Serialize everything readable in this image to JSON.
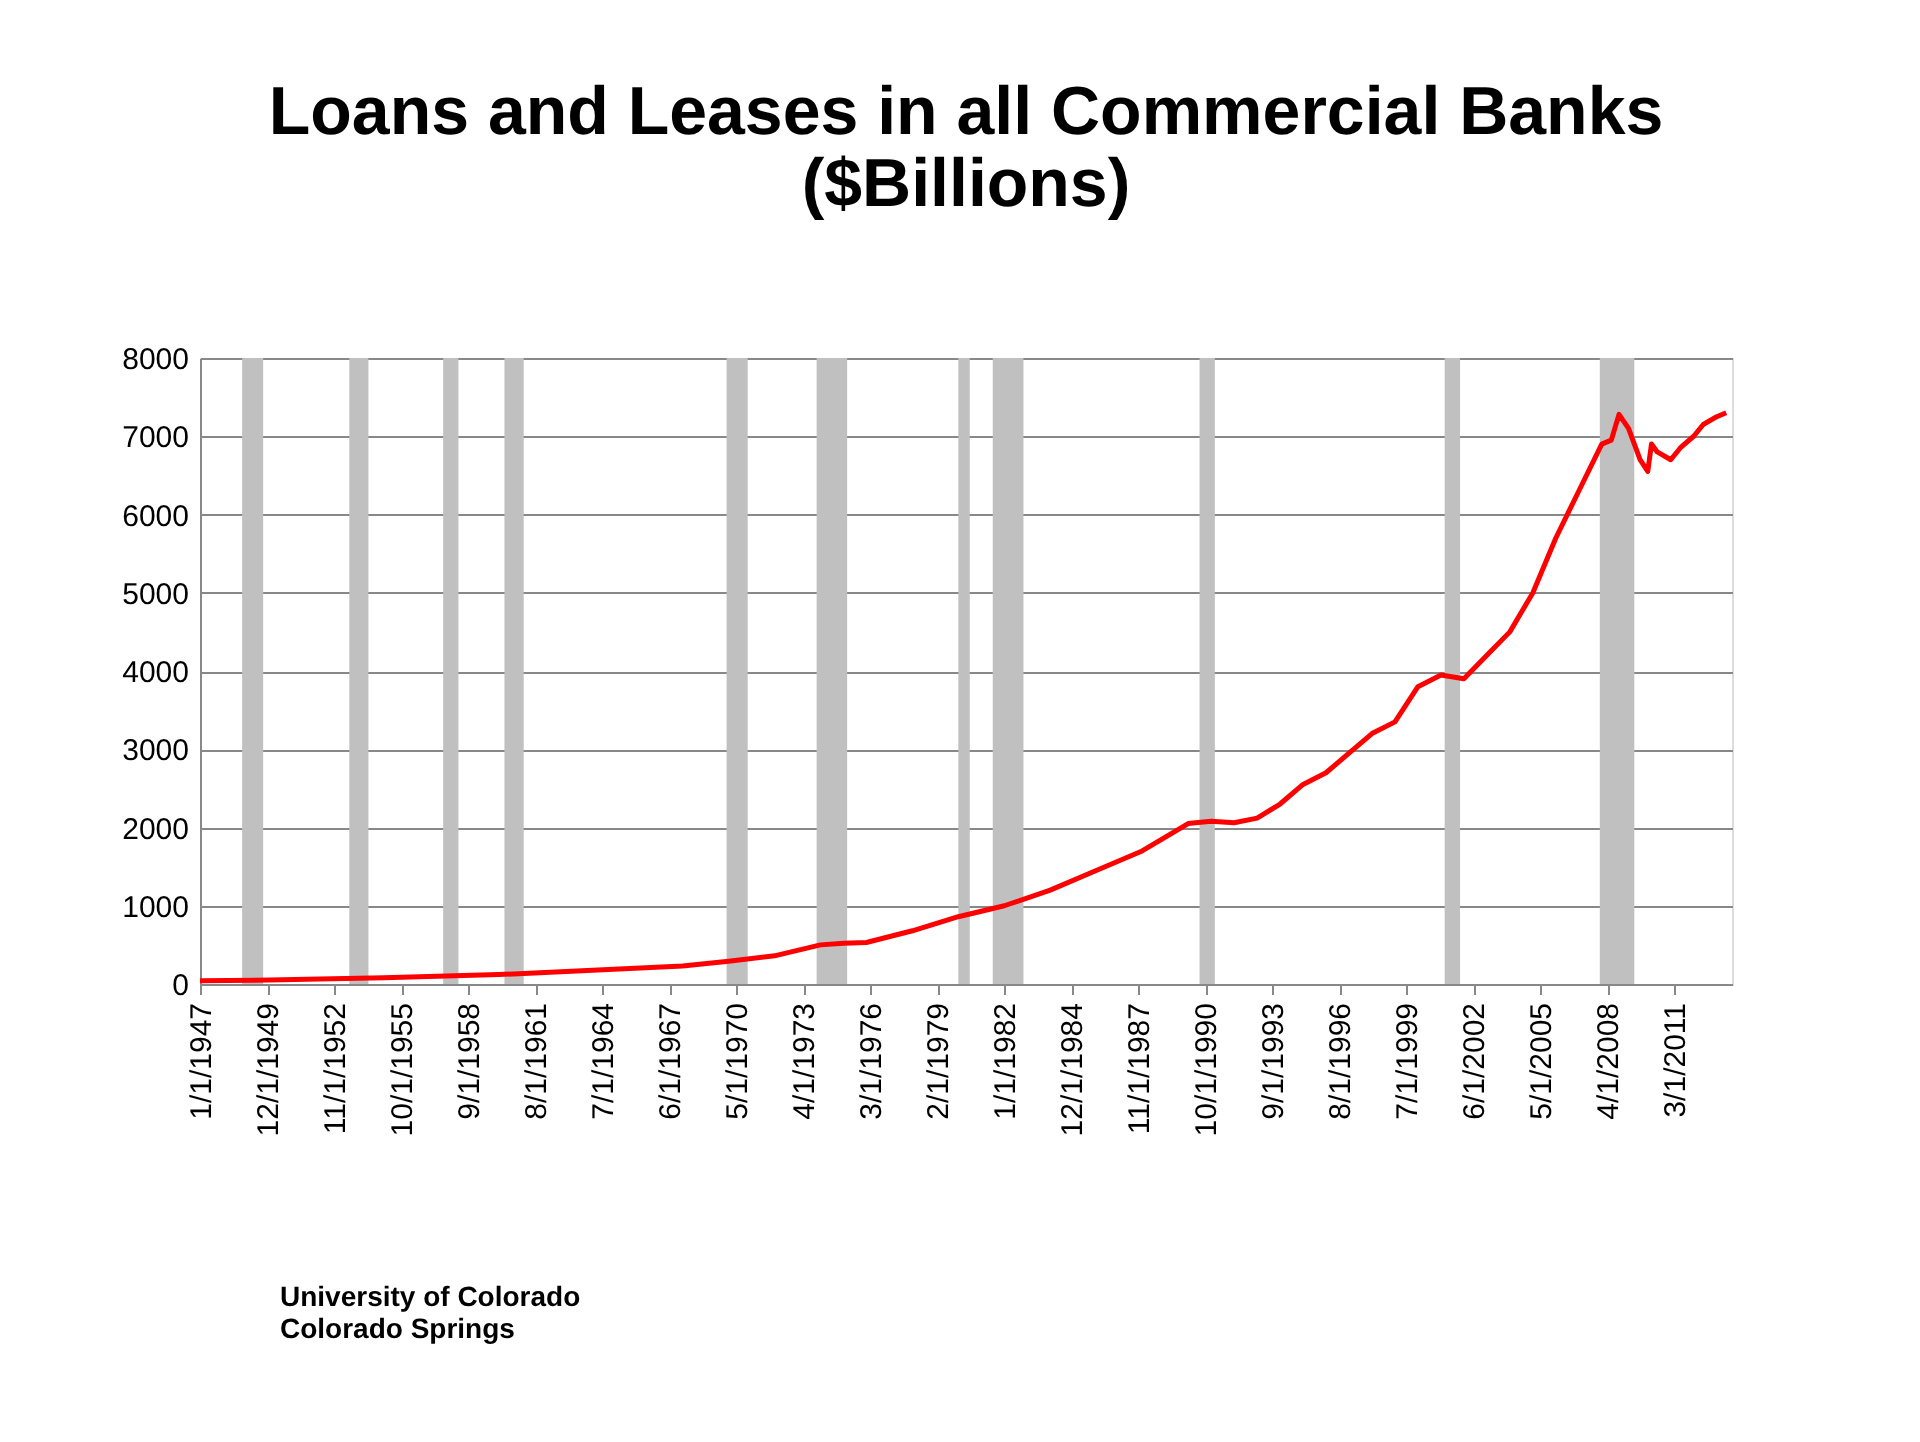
{
  "chart_data": {
    "type": "line",
    "title": "Loans and Leases in all Commercial Banks\n($Billions)",
    "x": [
      "1947-01",
      "1950-01",
      "1955-01",
      "1960-01",
      "1965-01",
      "1968-01",
      "1970-01",
      "1972-01",
      "1974-01",
      "1975-01",
      "1976-01",
      "1978-01",
      "1980-01",
      "1982-01",
      "1984-01",
      "1986-01",
      "1988-01",
      "1990-01",
      "1991-01",
      "1992-01",
      "1993-01",
      "1994-01",
      "1995-01",
      "1996-01",
      "1997-01",
      "1998-01",
      "1999-01",
      "2000-01",
      "2001-01",
      "2002-01",
      "2003-01",
      "2004-01",
      "2005-01",
      "2006-01",
      "2007-01",
      "2008-01",
      "2008-06",
      "2008-10",
      "2009-03",
      "2009-09",
      "2010-01",
      "2010-03",
      "2010-06",
      "2011-01",
      "2011-06",
      "2012-01",
      "2012-06",
      "2013-01",
      "2013-06"
    ],
    "series": [
      {
        "color": "#ff0000",
        "values": [
          40,
          50,
          80,
          120,
          190,
          230,
          290,
          360,
          500,
          520,
          530,
          680,
          860,
          1000,
          1200,
          1450,
          1700,
          2050,
          2080,
          2060,
          2120,
          2300,
          2550,
          2700,
          2950,
          3200,
          3350,
          3800,
          3950,
          3900,
          4200,
          4500,
          5000,
          5700,
          6300,
          6900,
          6950,
          7280,
          7100,
          6700,
          6550,
          6900,
          6800,
          6700,
          6850,
          7000,
          7150,
          7250,
          7300
        ]
      }
    ],
    "xlim": [
      "1947-01-01",
      "2013-09-01"
    ],
    "xticks": [
      {
        "value": "1947-01-01",
        "label": "1/1/1947"
      },
      {
        "value": "1949-12-01",
        "label": "12/1/1949"
      },
      {
        "value": "1952-11-01",
        "label": "11/1/1952"
      },
      {
        "value": "1955-10-01",
        "label": "10/1/1955"
      },
      {
        "value": "1958-09-01",
        "label": "9/1/1958"
      },
      {
        "value": "1961-08-01",
        "label": "8/1/1961"
      },
      {
        "value": "1964-07-01",
        "label": "7/1/1964"
      },
      {
        "value": "1967-06-01",
        "label": "6/1/1967"
      },
      {
        "value": "1970-05-01",
        "label": "5/1/1970"
      },
      {
        "value": "1973-04-01",
        "label": "4/1/1973"
      },
      {
        "value": "1976-03-01",
        "label": "3/1/1976"
      },
      {
        "value": "1979-02-01",
        "label": "2/1/1979"
      },
      {
        "value": "1982-01-01",
        "label": "1/1/1982"
      },
      {
        "value": "1984-12-01",
        "label": "12/1/1984"
      },
      {
        "value": "1987-11-01",
        "label": "11/1/1987"
      },
      {
        "value": "1990-10-01",
        "label": "10/1/1990"
      },
      {
        "value": "1993-09-01",
        "label": "9/1/1993"
      },
      {
        "value": "1996-08-01",
        "label": "8/1/1996"
      },
      {
        "value": "1999-07-01",
        "label": "7/1/1999"
      },
      {
        "value": "2002-06-01",
        "label": "6/1/2002"
      },
      {
        "value": "2005-05-01",
        "label": "5/1/2005"
      },
      {
        "value": "2008-04-01",
        "label": "4/1/2008"
      },
      {
        "value": "2011-03-01",
        "label": "3/1/2011"
      }
    ],
    "ylim": [
      0,
      8000
    ],
    "yticks": [
      0,
      1000,
      2000,
      3000,
      4000,
      5000,
      6000,
      7000,
      8000
    ],
    "grid": "y",
    "marker": "none",
    "bands": [
      {
        "axis": "x",
        "from": "1948-11-01",
        "to": "1949-10-01",
        "color": "#c0c0c0"
      },
      {
        "axis": "x",
        "from": "1953-07-01",
        "to": "1954-05-01",
        "color": "#c0c0c0"
      },
      {
        "axis": "x",
        "from": "1957-08-01",
        "to": "1958-04-01",
        "color": "#c0c0c0"
      },
      {
        "axis": "x",
        "from": "1960-04-01",
        "to": "1961-02-01",
        "color": "#c0c0c0"
      },
      {
        "axis": "x",
        "from": "1969-12-01",
        "to": "1970-11-01",
        "color": "#c0c0c0"
      },
      {
        "axis": "x",
        "from": "1973-11-01",
        "to": "1975-03-01",
        "color": "#c0c0c0"
      },
      {
        "axis": "x",
        "from": "1980-01-01",
        "to": "1980-07-01",
        "color": "#c0c0c0"
      },
      {
        "axis": "x",
        "from": "1981-07-01",
        "to": "1982-11-01",
        "color": "#c0c0c0"
      },
      {
        "axis": "x",
        "from": "1990-07-01",
        "to": "1991-03-01",
        "color": "#c0c0c0"
      },
      {
        "axis": "x",
        "from": "2001-03-01",
        "to": "2001-11-01",
        "color": "#c0c0c0"
      },
      {
        "axis": "x",
        "from": "2007-12-01",
        "to": "2009-06-01",
        "color": "#c0c0c0"
      }
    ],
    "annotations": [
      "University of Colorado\nColorado Springs"
    ]
  }
}
